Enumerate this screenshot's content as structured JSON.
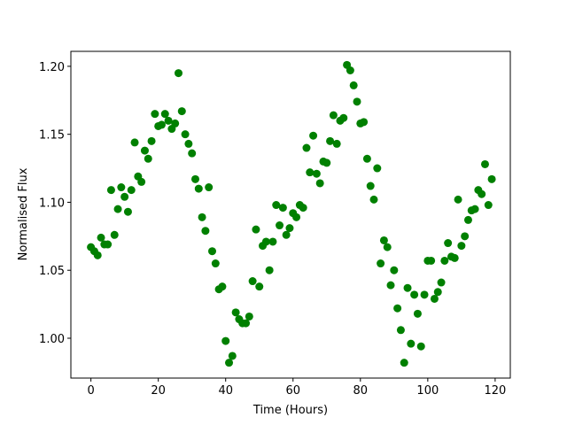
{
  "chart_data": {
    "type": "scatter",
    "xlabel": "Time (Hours)",
    "ylabel": "Normalised Flux",
    "color": "green",
    "x": [
      0,
      1,
      2,
      3,
      4,
      5,
      6,
      7,
      8,
      9,
      10,
      11,
      12,
      13,
      14,
      15,
      16,
      17,
      18,
      19,
      20,
      21,
      22,
      23,
      24,
      25,
      26,
      27,
      28,
      29,
      30,
      31,
      32,
      33,
      34,
      35,
      36,
      37,
      38,
      39,
      40,
      41,
      42,
      43,
      44,
      45,
      46,
      47,
      48,
      49,
      50,
      51,
      52,
      53,
      54,
      55,
      56,
      57,
      58,
      59,
      60,
      61,
      62,
      63,
      64,
      65,
      66,
      67,
      68,
      69,
      70,
      71,
      72,
      73,
      74,
      75,
      76,
      77,
      78,
      79,
      80,
      81,
      82,
      83,
      84,
      85,
      86,
      87,
      88,
      89,
      90,
      91,
      92,
      93,
      94,
      95,
      96,
      97,
      98,
      99,
      100,
      101,
      102,
      103,
      104,
      105,
      106,
      107,
      108,
      109,
      110,
      111,
      112,
      113,
      114,
      115,
      116,
      117,
      118,
      119
    ],
    "values": [
      1.067,
      1.064,
      1.061,
      1.074,
      1.069,
      1.069,
      1.109,
      1.076,
      1.095,
      1.111,
      1.104,
      1.093,
      1.109,
      1.144,
      1.119,
      1.115,
      1.138,
      1.132,
      1.145,
      1.165,
      1.156,
      1.157,
      1.165,
      1.16,
      1.154,
      1.158,
      1.195,
      1.167,
      1.15,
      1.143,
      1.136,
      1.117,
      1.11,
      1.089,
      1.079,
      1.111,
      1.064,
      1.055,
      1.036,
      1.038,
      0.998,
      0.982,
      0.987,
      1.019,
      1.014,
      1.011,
      1.011,
      1.016,
      1.042,
      1.08,
      1.038,
      1.068,
      1.071,
      1.05,
      1.071,
      1.098,
      1.083,
      1.096,
      1.076,
      1.081,
      1.092,
      1.089,
      1.098,
      1.096,
      1.14,
      1.122,
      1.149,
      1.121,
      1.114,
      1.13,
      1.129,
      1.145,
      1.164,
      1.143,
      1.16,
      1.162,
      1.201,
      1.197,
      1.186,
      1.174,
      1.158,
      1.159,
      1.132,
      1.112,
      1.102,
      1.125,
      1.055,
      1.072,
      1.067,
      1.039,
      1.05,
      1.022,
      1.006,
      0.982,
      1.037,
      0.996,
      1.032,
      1.018,
      0.994,
      1.032,
      1.057,
      1.057,
      1.029,
      1.034,
      1.041,
      1.057,
      1.07,
      1.06,
      1.059,
      1.102,
      1.068,
      1.075,
      1.087,
      1.094,
      1.095,
      1.109,
      1.106,
      1.128,
      1.098,
      1.117
    ],
    "xlim": [
      -5.95,
      124.5
    ],
    "ylim": [
      0.9707,
      1.211
    ],
    "xticks": [
      0,
      20,
      40,
      60,
      80,
      100,
      120
    ],
    "yticks": [
      {
        "value": 1.0,
        "label": "1.00"
      },
      1.05,
      {
        "value": 1.1,
        "label": "1.10"
      },
      1.15,
      {
        "value": 1.2,
        "label": "1.20"
      }
    ]
  }
}
